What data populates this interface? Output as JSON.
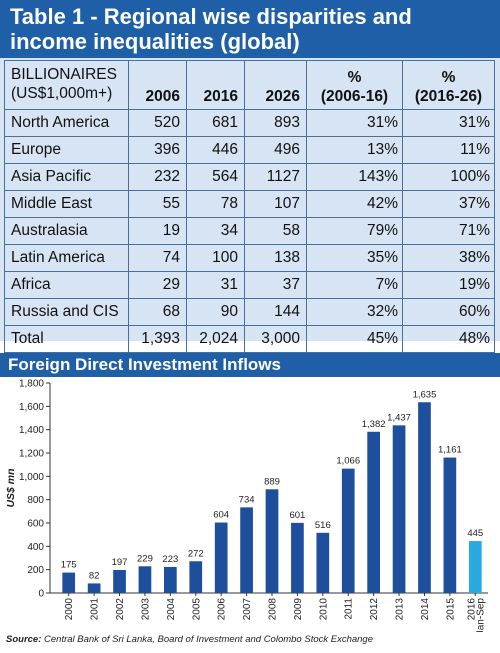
{
  "table1": {
    "title_line1": "Table 1 - Regional wise disparities and",
    "title_line2": "income inequalities (global)",
    "header": {
      "category_line1": "BILLIONAIRES",
      "category_line2": "(US$1,000m+)",
      "col_2006": "2006",
      "col_2016": "2016",
      "col_2026": "2026",
      "pct1_line1": "%",
      "pct1_line2": "(2006-16)",
      "pct2_line1": "%",
      "pct2_line2": "(2016-26)"
    },
    "rows": [
      {
        "region": "North America",
        "v2006": "520",
        "v2016": "681",
        "v2026": "893",
        "p1": "31%",
        "p2": "31%"
      },
      {
        "region": "Europe",
        "v2006": "396",
        "v2016": "446",
        "v2026": "496",
        "p1": "13%",
        "p2": "11%"
      },
      {
        "region": "Asia Pacific",
        "v2006": "232",
        "v2016": "564",
        "v2026": "1127",
        "p1": "143%",
        "p2": "100%"
      },
      {
        "region": "Middle East",
        "v2006": "55",
        "v2016": "78",
        "v2026": "107",
        "p1": "42%",
        "p2": "37%"
      },
      {
        "region": "Australasia",
        "v2006": "19",
        "v2016": "34",
        "v2026": "58",
        "p1": "79%",
        "p2": "71%"
      },
      {
        "region": "Latin America",
        "v2006": "74",
        "v2016": "100",
        "v2026": "138",
        "p1": "35%",
        "p2": "38%"
      },
      {
        "region": "Africa",
        "v2006": "29",
        "v2016": "31",
        "v2026": "37",
        "p1": "7%",
        "p2": "19%"
      },
      {
        "region": "Russia and CIS",
        "v2006": "68",
        "v2016": "90",
        "v2026": "144",
        "p1": "32%",
        "p2": "60%"
      },
      {
        "region": "Total",
        "v2006": "1,393",
        "v2016": "2,024",
        "v2026": "3,000",
        "p1": "45%",
        "p2": "48%"
      }
    ]
  },
  "chart_data": {
    "type": "bar",
    "title": "Foreign Direct Investment Inflows",
    "ylabel": "US$ mn",
    "xlabel": "",
    "ylim": [
      0,
      1800
    ],
    "yticks": [
      "0",
      "200",
      "400",
      "600",
      "800",
      "1,000",
      "1,200",
      "1,400",
      "1,600",
      "1,800"
    ],
    "categories": [
      "2000",
      "2001",
      "2002",
      "2003",
      "2004",
      "2005",
      "2006",
      "2007",
      "2008",
      "2009",
      "2010",
      "2011",
      "2012",
      "2013",
      "2014",
      "2015",
      "2016 Jan-Sep"
    ],
    "category_labels": [
      [
        "2000"
      ],
      [
        "2001"
      ],
      [
        "2002"
      ],
      [
        "2003"
      ],
      [
        "2004"
      ],
      [
        "2005"
      ],
      [
        "2006"
      ],
      [
        "2007"
      ],
      [
        "2008"
      ],
      [
        "2009"
      ],
      [
        "2010"
      ],
      [
        "2011"
      ],
      [
        "2012"
      ],
      [
        "2013"
      ],
      [
        "2014"
      ],
      [
        "2015"
      ],
      [
        "2016",
        "Jan-Sep"
      ]
    ],
    "values": [
      175,
      82,
      197,
      229,
      223,
      272,
      604,
      734,
      889,
      601,
      516,
      1066,
      1382,
      1437,
      1635,
      1161,
      445
    ],
    "value_labels": [
      "175",
      "82",
      "197",
      "229",
      "223",
      "272",
      "604",
      "734",
      "889",
      "601",
      "516",
      "1,066",
      "1,382",
      "1,437",
      "1,635",
      "1,161",
      "445"
    ],
    "colors": {
      "bar": "#1d4f9c",
      "highlight": "#2aa8e0",
      "grid": "#b9c0cc",
      "axis": "#333333"
    },
    "highlight_index": 16,
    "grid": false
  },
  "source": {
    "label": "Source:",
    "text": "Central Bank of Sri Lanka, Board of Investment and Colombo Stock Exchange"
  },
  "colors": {
    "header_blue": "#1f5fa7",
    "table_bg": "#d7e4f3"
  }
}
